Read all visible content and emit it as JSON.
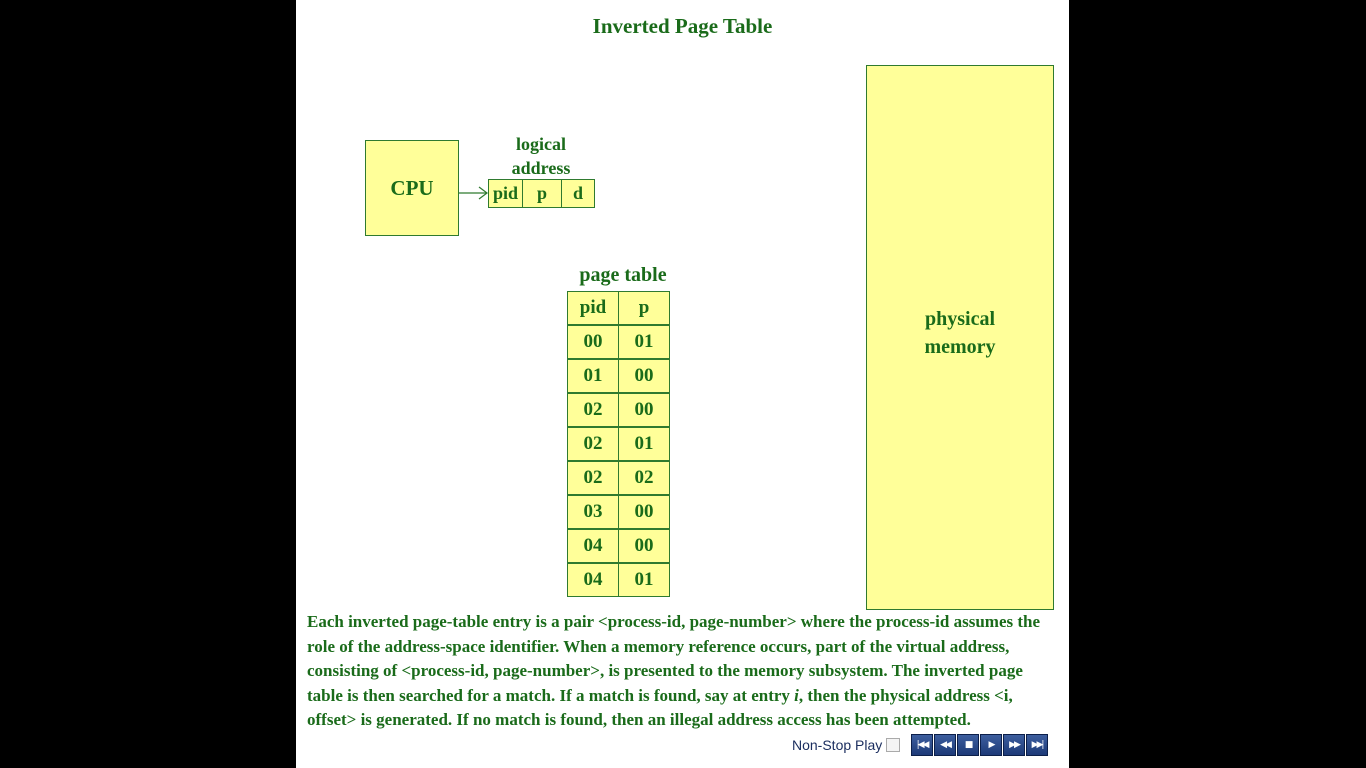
{
  "title": "Inverted Page Table",
  "cpu_label": "CPU",
  "logical_address": {
    "label_line1": "logical",
    "label_line2": "address",
    "fields": [
      "pid",
      "p",
      "d"
    ]
  },
  "page_table": {
    "label": "page table",
    "headers": [
      "pid",
      "p"
    ],
    "rows": [
      [
        "00",
        "01"
      ],
      [
        "01",
        "00"
      ],
      [
        "02",
        "00"
      ],
      [
        "02",
        "01"
      ],
      [
        "02",
        "02"
      ],
      [
        "03",
        "00"
      ],
      [
        "04",
        "00"
      ],
      [
        "04",
        "01"
      ]
    ]
  },
  "physical_memory": {
    "line1": "physical",
    "line2": "memory"
  },
  "description": {
    "part1": "Each inverted page-table entry is a pair <process-id, page-number> where the process-id assumes the role of the address-space identifier.  When a memory reference occurs, part of the virtual address, consisting of <process-id, page-number>, is presented to the memory subsystem.  The inverted page table is then searched for a match.  If a match is found, say at entry ",
    "italic": "i",
    "part2": ", then the physical address <i, offset> is generated.  If no match is found, then an illegal address access has been attempted."
  },
  "player": {
    "nonstop_label": "Non-Stop Play",
    "buttons": [
      {
        "name": "first-icon",
        "glyph": "|◀◀"
      },
      {
        "name": "rewind-icon",
        "glyph": "◀◀"
      },
      {
        "name": "stop-icon",
        "glyph": "■"
      },
      {
        "name": "play-icon",
        "glyph": "▶"
      },
      {
        "name": "fast-forward-icon",
        "glyph": "▶▶"
      },
      {
        "name": "last-icon",
        "glyph": "▶▶|"
      }
    ]
  },
  "colors": {
    "text_green": "#1a6b1a",
    "box_fill": "#ffff99",
    "box_border": "#2f7a2f"
  }
}
